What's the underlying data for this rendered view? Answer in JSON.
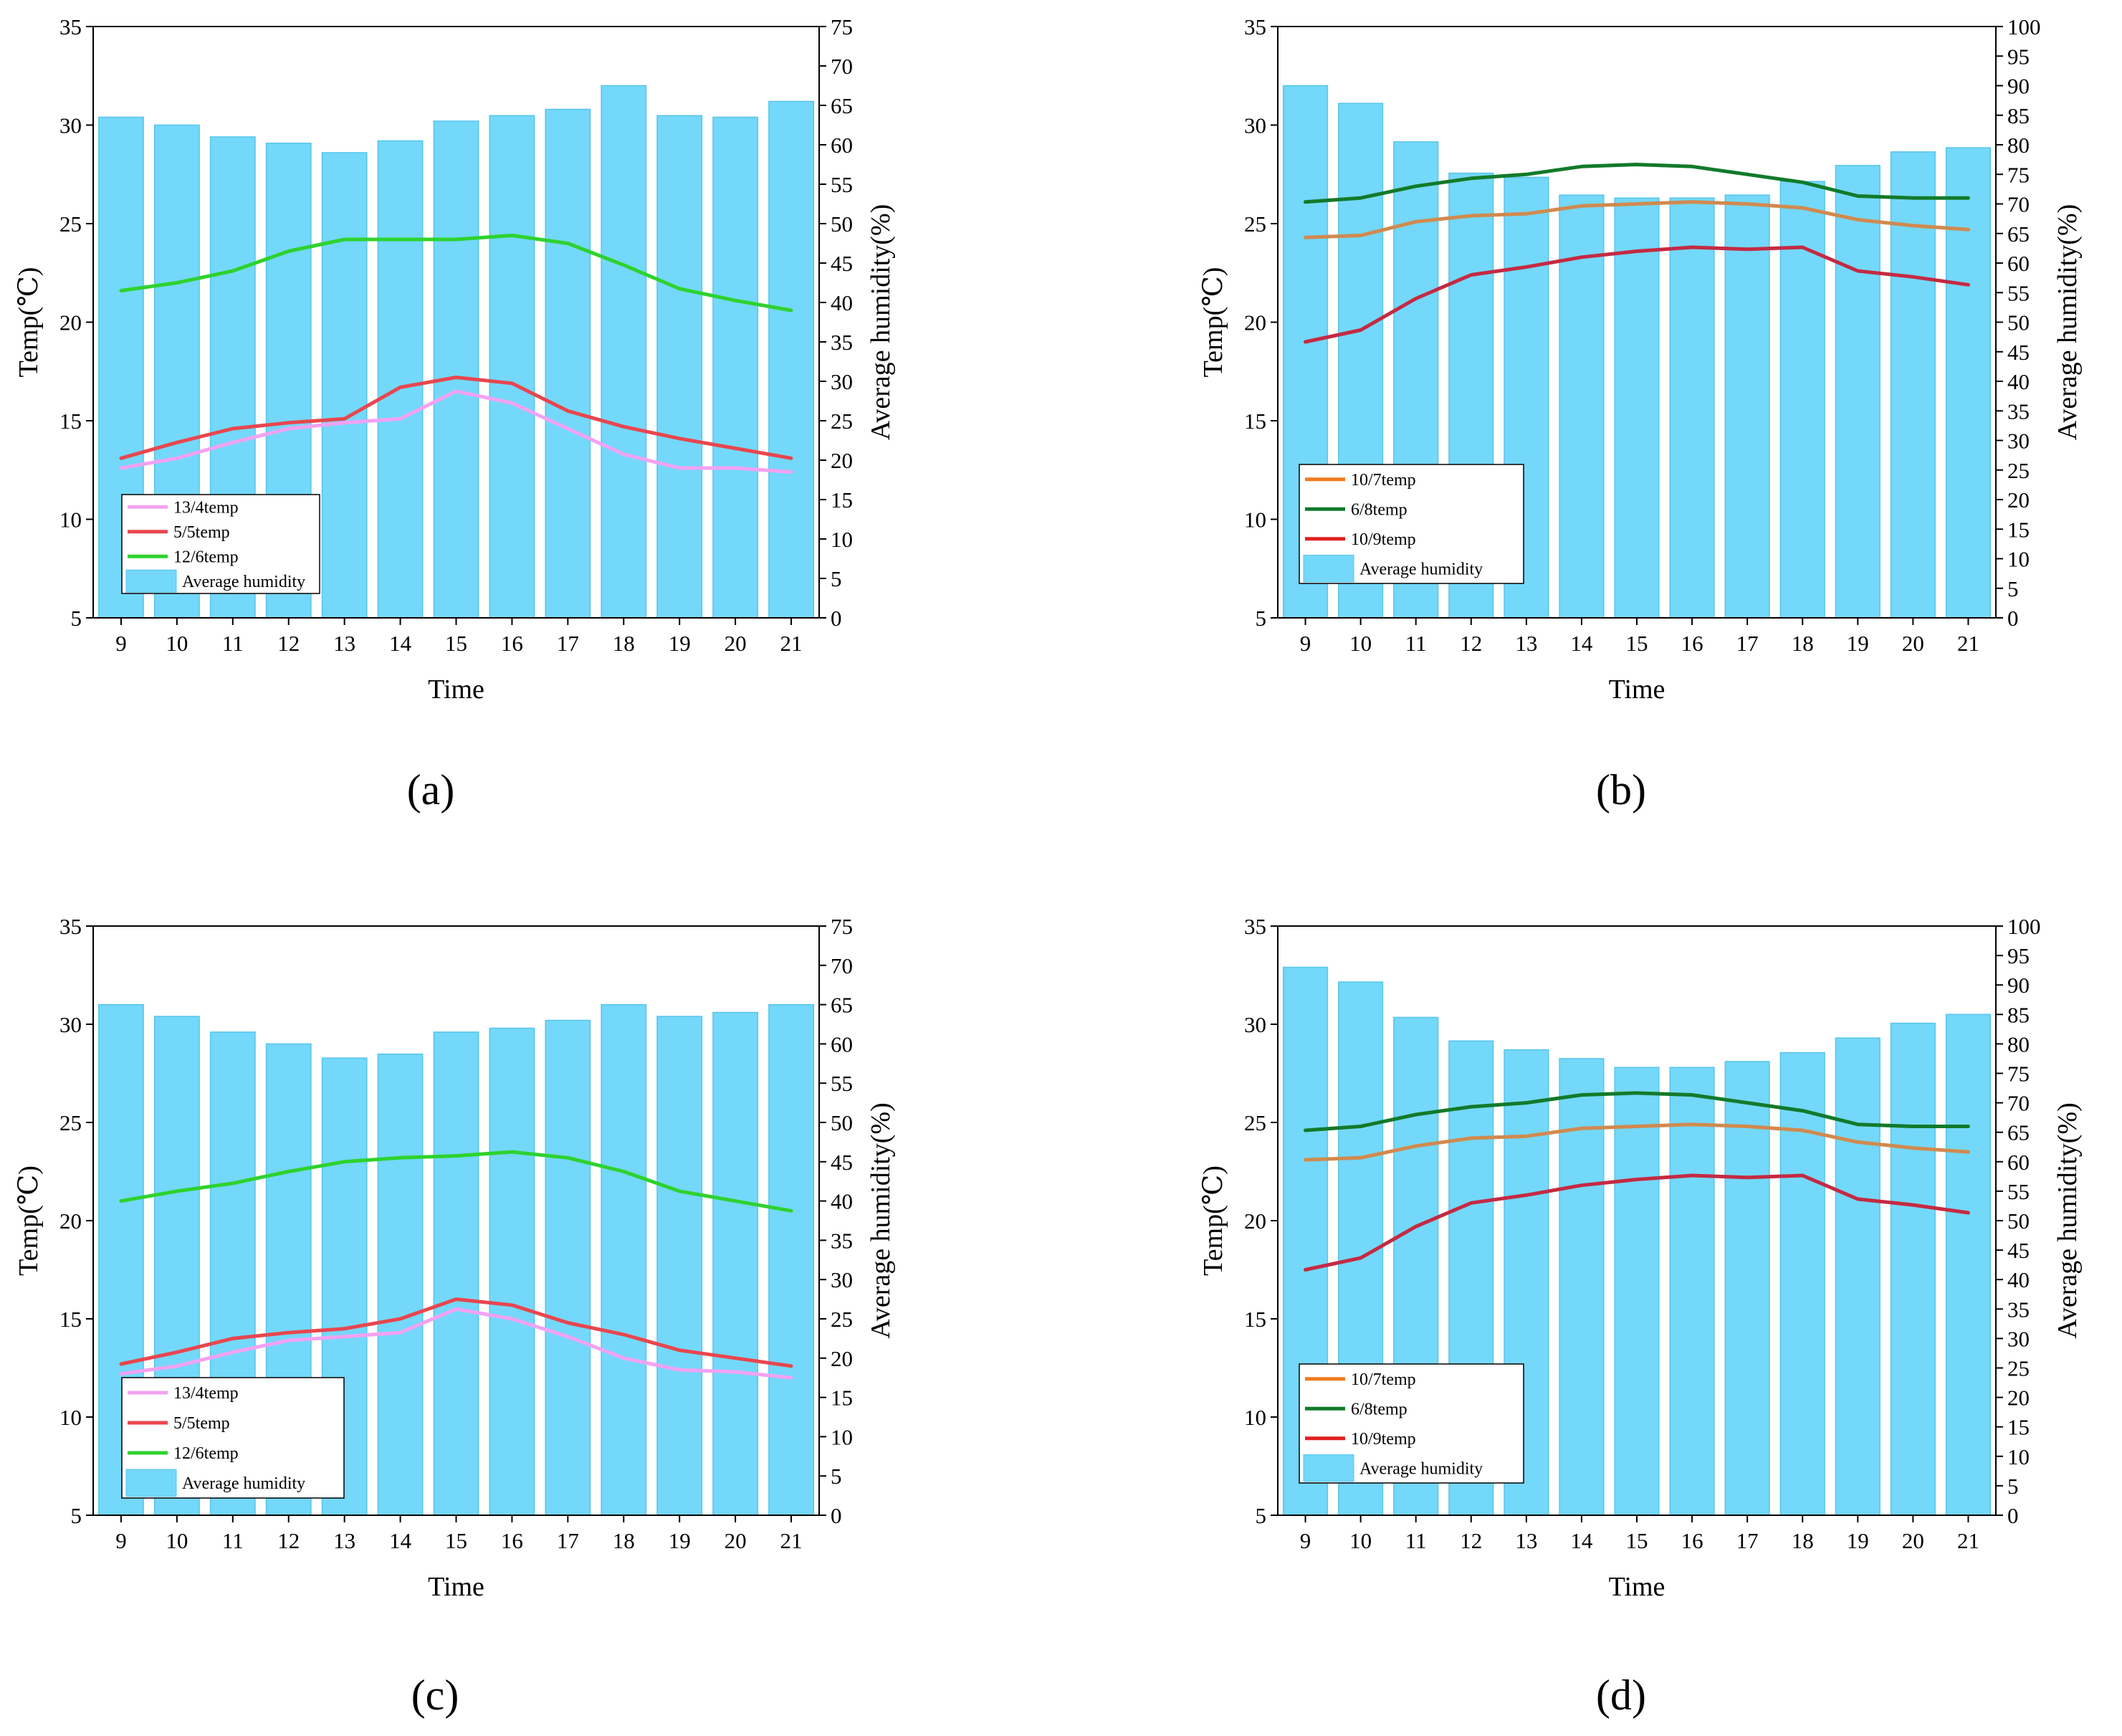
{
  "chart_data": [
    {
      "id": "a",
      "type": "bar+line",
      "panel_label_text": "(a)",
      "xlabel": "Time",
      "ylabel": "Temp(℃)",
      "y2label": "Average humidity(%)",
      "categories": [
        "9",
        "10",
        "11",
        "12",
        "13",
        "14",
        "15",
        "16",
        "17",
        "18",
        "19",
        "20",
        "21"
      ],
      "ylim": [
        5,
        35
      ],
      "yticks": [
        5,
        10,
        15,
        20,
        25,
        30,
        35
      ],
      "y2lim": [
        0,
        75
      ],
      "y2ticks": [
        0,
        5,
        10,
        15,
        20,
        25,
        30,
        35,
        40,
        45,
        50,
        55,
        60,
        65,
        70,
        75
      ],
      "bars": {
        "name": "Average humidity",
        "color": "#74D8FA",
        "edge": "#56C4EE",
        "values": [
          63.5,
          62.5,
          61,
          60.2,
          59,
          60.5,
          63,
          63.7,
          64.5,
          67.5,
          63.7,
          63.5,
          65.5
        ]
      },
      "series": [
        {
          "name": "13/4temp",
          "color": "#F2A2F2",
          "values": [
            12.6,
            13.1,
            13.9,
            14.6,
            14.9,
            15.1,
            16.5,
            15.9,
            14.6,
            13.3,
            12.6,
            12.6,
            12.4
          ]
        },
        {
          "name": "5/5temp",
          "color": "#E8464E",
          "values": [
            13.1,
            13.9,
            14.6,
            14.9,
            15.1,
            16.7,
            17.2,
            16.9,
            15.5,
            14.7,
            14.1,
            13.6,
            13.1
          ]
        },
        {
          "name": "12/6temp",
          "color": "#2ED22E",
          "values": [
            21.6,
            22.0,
            22.6,
            23.6,
            24.2,
            24.2,
            24.2,
            24.4,
            24.0,
            22.9,
            21.7,
            21.1,
            20.6
          ]
        }
      ],
      "legend": [
        {
          "label": "13/4temp",
          "kind": "line",
          "color": "#F2A2F2"
        },
        {
          "label": "5/5temp",
          "kind": "line",
          "color": "#E8464E"
        },
        {
          "label": "12/6temp",
          "kind": "line",
          "color": "#2ED22E"
        },
        {
          "label": "Average humidity",
          "kind": "bar",
          "color": "#74D8FA"
        }
      ],
      "legend_placement": "bottom-left"
    },
    {
      "id": "b",
      "type": "bar+line",
      "panel_label_text": "(b)",
      "xlabel": "Time",
      "ylabel": "Temp(℃)",
      "y2label": "Average humidity(%)",
      "categories": [
        "9",
        "10",
        "11",
        "12",
        "13",
        "14",
        "15",
        "16",
        "17",
        "18",
        "19",
        "20",
        "21"
      ],
      "ylim": [
        5,
        35
      ],
      "yticks": [
        5,
        10,
        15,
        20,
        25,
        30,
        35
      ],
      "y2lim": [
        0,
        100
      ],
      "y2ticks": [
        0,
        5,
        10,
        15,
        20,
        25,
        30,
        35,
        40,
        45,
        50,
        55,
        60,
        65,
        70,
        75,
        80,
        85,
        90,
        95,
        100
      ],
      "bars": {
        "name": "Average humidity",
        "color": "#74D8FA",
        "edge": "#56C4EE",
        "values": [
          90,
          87,
          80.5,
          75.2,
          74.5,
          71.5,
          71,
          71,
          71.5,
          73.8,
          76.5,
          78.8,
          79.5
        ]
      },
      "series": [
        {
          "name": "10/7temp",
          "color": "#D08A4E",
          "values": [
            24.3,
            24.4,
            25.1,
            25.4,
            25.5,
            25.9,
            26.0,
            26.1,
            26.0,
            25.8,
            25.2,
            24.9,
            24.7
          ]
        },
        {
          "name": "6/8temp",
          "color": "#127A2A",
          "values": [
            26.1,
            26.3,
            26.9,
            27.3,
            27.5,
            27.9,
            28.0,
            27.9,
            27.5,
            27.1,
            26.4,
            26.3,
            26.3
          ]
        },
        {
          "name": "10/9temp",
          "color": "#C42A42",
          "values": [
            19.0,
            19.6,
            21.2,
            22.4,
            22.8,
            23.3,
            23.6,
            23.8,
            23.7,
            23.8,
            22.6,
            22.3,
            21.9
          ]
        }
      ],
      "legend": [
        {
          "label": "10/7temp",
          "kind": "line",
          "color": "#F07B20"
        },
        {
          "label": "6/8temp",
          "kind": "line",
          "color": "#127A2A"
        },
        {
          "label": "10/9temp",
          "kind": "line",
          "color": "#E02020"
        },
        {
          "label": "Average humidity",
          "kind": "bar",
          "color": "#74D8FA"
        }
      ],
      "legend_placement": "bottom-left"
    },
    {
      "id": "c",
      "type": "bar+line",
      "panel_label_text": "(c)",
      "xlabel": "Time",
      "ylabel": "Temp(℃)",
      "y2label": "Average humidity(%)",
      "categories": [
        "9",
        "10",
        "11",
        "12",
        "13",
        "14",
        "15",
        "16",
        "17",
        "18",
        "19",
        "20",
        "21"
      ],
      "ylim": [
        5,
        35
      ],
      "yticks": [
        5,
        10,
        15,
        20,
        25,
        30,
        35
      ],
      "y2lim": [
        0,
        75
      ],
      "y2ticks": [
        0,
        5,
        10,
        15,
        20,
        25,
        30,
        35,
        40,
        45,
        50,
        55,
        60,
        65,
        70,
        75
      ],
      "bars": {
        "name": "Average humidity",
        "color": "#74D8FA",
        "edge": "#56C4EE",
        "values": [
          65,
          63.5,
          61.5,
          60,
          58.2,
          58.7,
          61.5,
          62,
          63,
          65,
          63.5,
          64,
          65
        ]
      },
      "series": [
        {
          "name": "13/4temp",
          "color": "#F2A2F2",
          "values": [
            12.2,
            12.6,
            13.3,
            13.9,
            14.1,
            14.3,
            15.5,
            15.0,
            14.1,
            13.0,
            12.4,
            12.3,
            12.0
          ]
        },
        {
          "name": "5/5temp",
          "color": "#E8464E",
          "values": [
            12.7,
            13.3,
            14.0,
            14.3,
            14.5,
            15.0,
            16.0,
            15.7,
            14.8,
            14.2,
            13.4,
            13.0,
            12.6
          ]
        },
        {
          "name": "12/6temp",
          "color": "#2ED22E",
          "values": [
            21.0,
            21.5,
            21.9,
            22.5,
            23.0,
            23.2,
            23.3,
            23.5,
            23.2,
            22.5,
            21.5,
            21.0,
            20.5
          ]
        }
      ],
      "legend": [
        {
          "label": "13/4temp",
          "kind": "line",
          "color": "#F2A2F2"
        },
        {
          "label": "5/5temp",
          "kind": "line",
          "color": "#E8464E"
        },
        {
          "label": "12/6temp",
          "kind": "line",
          "color": "#2ED22E"
        },
        {
          "label": "Average humidity",
          "kind": "bar",
          "color": "#74D8FA"
        }
      ],
      "legend_placement": "bottom-left"
    },
    {
      "id": "d",
      "type": "bar+line",
      "panel_label_text": "(d)",
      "xlabel": "Time",
      "ylabel": "Temp(℃)",
      "y2label": "Average humidity(%)",
      "categories": [
        "9",
        "10",
        "11",
        "12",
        "13",
        "14",
        "15",
        "16",
        "17",
        "18",
        "19",
        "20",
        "21"
      ],
      "ylim": [
        5,
        35
      ],
      "yticks": [
        5,
        10,
        15,
        20,
        25,
        30,
        35
      ],
      "y2lim": [
        0,
        100
      ],
      "y2ticks": [
        0,
        5,
        10,
        15,
        20,
        25,
        30,
        35,
        40,
        45,
        50,
        55,
        60,
        65,
        70,
        75,
        80,
        85,
        90,
        95,
        100
      ],
      "bars": {
        "name": "Average humidity",
        "color": "#74D8FA",
        "edge": "#56C4EE",
        "values": [
          93,
          90.5,
          84.5,
          80.5,
          79,
          77.5,
          76,
          76,
          77,
          78.5,
          81,
          83.5,
          85
        ]
      },
      "series": [
        {
          "name": "10/7temp",
          "color": "#D08A4E",
          "values": [
            23.1,
            23.2,
            23.8,
            24.2,
            24.3,
            24.7,
            24.8,
            24.9,
            24.8,
            24.6,
            24.0,
            23.7,
            23.5
          ]
        },
        {
          "name": "6/8temp",
          "color": "#127A2A",
          "values": [
            24.6,
            24.8,
            25.4,
            25.8,
            26.0,
            26.4,
            26.5,
            26.4,
            26.0,
            25.6,
            24.9,
            24.8,
            24.8
          ]
        },
        {
          "name": "10/9temp",
          "color": "#C42A42",
          "values": [
            17.5,
            18.1,
            19.7,
            20.9,
            21.3,
            21.8,
            22.1,
            22.3,
            22.2,
            22.3,
            21.1,
            20.8,
            20.4
          ]
        }
      ],
      "legend": [
        {
          "label": "10/7temp",
          "kind": "line",
          "color": "#F07B20"
        },
        {
          "label": "6/8temp",
          "kind": "line",
          "color": "#127A2A"
        },
        {
          "label": "10/9temp",
          "kind": "line",
          "color": "#E02020"
        },
        {
          "label": "Average humidity",
          "kind": "bar",
          "color": "#74D8FA"
        }
      ],
      "legend_placement": "bottom-left"
    }
  ]
}
